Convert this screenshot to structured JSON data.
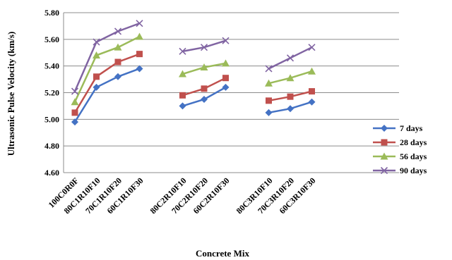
{
  "chart_data": {
    "type": "line",
    "title": "",
    "xlabel": "Concrete Mix",
    "ylabel": "Ultrasonic Pulse Velocity (km/s)",
    "ylim": [
      4.6,
      5.8
    ],
    "yticks": [
      "4.60",
      "4.80",
      "5.00",
      "5.20",
      "5.40",
      "5.60",
      "5.80"
    ],
    "grid": "horizontal",
    "legend_position": "right",
    "categories": [
      "100C0R0F",
      "80C1R10F10",
      "70C1R10F20",
      "60C1R10F30",
      "",
      "80C2R10F10",
      "70C2R10F20",
      "60C2R10F30",
      "",
      "80C3R10F10",
      "70C3R10F20",
      "60C3R10F30"
    ],
    "series": [
      {
        "name": "7 days",
        "color": "#4472C4",
        "marker": "diamond",
        "values": [
          4.98,
          5.24,
          5.32,
          5.38,
          null,
          5.1,
          5.15,
          5.24,
          null,
          5.05,
          5.08,
          5.13
        ]
      },
      {
        "name": "28 days",
        "color": "#C0504D",
        "marker": "square",
        "values": [
          5.05,
          5.32,
          5.43,
          5.49,
          null,
          5.18,
          5.23,
          5.31,
          null,
          5.14,
          5.17,
          5.21
        ]
      },
      {
        "name": "56 days",
        "color": "#9BBB59",
        "marker": "triangle",
        "values": [
          5.13,
          5.48,
          5.54,
          5.62,
          null,
          5.34,
          5.39,
          5.42,
          null,
          5.27,
          5.31,
          5.36
        ]
      },
      {
        "name": "90 days",
        "color": "#8064A2",
        "marker": "x",
        "values": [
          5.21,
          5.58,
          5.66,
          5.72,
          null,
          5.51,
          5.54,
          5.59,
          null,
          5.38,
          5.46,
          5.54
        ]
      }
    ]
  }
}
